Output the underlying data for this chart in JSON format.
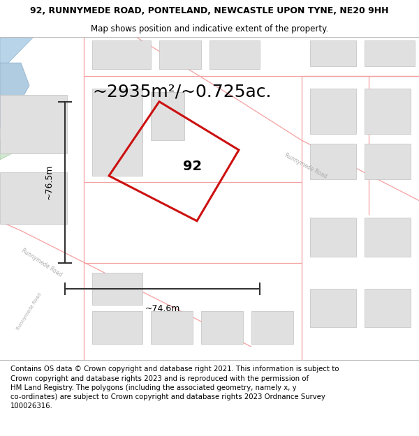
{
  "title_line1": "92, RUNNYMEDE ROAD, PONTELAND, NEWCASTLE UPON TYNE, NE20 9HH",
  "title_line2": "Map shows position and indicative extent of the property.",
  "area_text": "~2935m²/~0.725ac.",
  "label_92": "92",
  "dim_vertical": "~76.5m",
  "dim_horizontal": "~74.6m",
  "footer_text": "Contains OS data © Crown copyright and database right 2021. This information is subject to Crown copyright and database rights 2023 and is reproduced with the permission of HM Land Registry. The polygons (including the associated geometry, namely x, y co-ordinates) are subject to Crown copyright and database rights 2023 Ordnance Survey 100026316.",
  "title_fontsize": 9.0,
  "subtitle_fontsize": 8.5,
  "area_fontsize": 18,
  "label_fontsize": 14,
  "dim_fontsize": 9,
  "footer_fontsize": 7.3,
  "road_color": "#f5a0a0",
  "road_bg_color": "#f8f8f8",
  "building_fill": "#e0e0e0",
  "building_edge": "#c8c8c8",
  "water_color": "#b8d4e8",
  "green_color": "#d0e8d0",
  "poly_color": "#cc1111",
  "dim_color": "#333333",
  "map_bg": "#f8f5f0"
}
